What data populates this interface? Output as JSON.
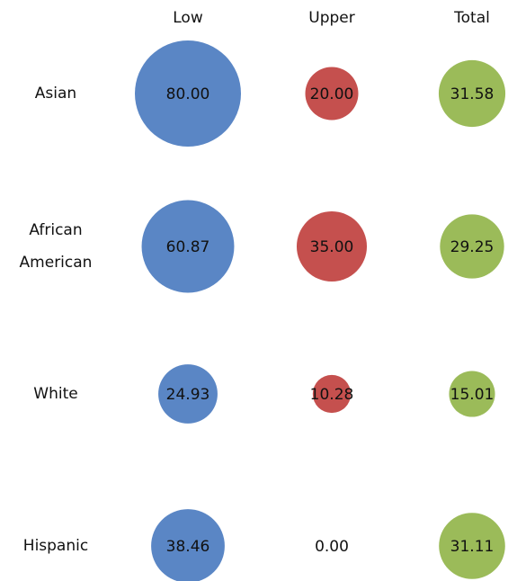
{
  "chart_data": {
    "type": "bubble",
    "categories": [
      "Asian",
      "African American",
      "White",
      "Hispanic"
    ],
    "series": [
      {
        "name": "Low",
        "color": "#5a86c5",
        "values": [
          80,
          60.87,
          24.93,
          38.46
        ],
        "value_labels": [
          "80.00",
          "60.87",
          "24.93",
          "38.46"
        ]
      },
      {
        "name": "Upper",
        "color": "#c5504e",
        "values": [
          20,
          35,
          10.28,
          0
        ],
        "value_labels": [
          "20.00",
          "35.00",
          "10.28",
          "0.00"
        ]
      },
      {
        "name": "Total",
        "color": "#9bbb59",
        "values": [
          31.58,
          29.25,
          15.01,
          31.11
        ],
        "value_labels": [
          "31.58",
          "29.25",
          "15.01",
          "31.11"
        ]
      }
    ]
  }
}
